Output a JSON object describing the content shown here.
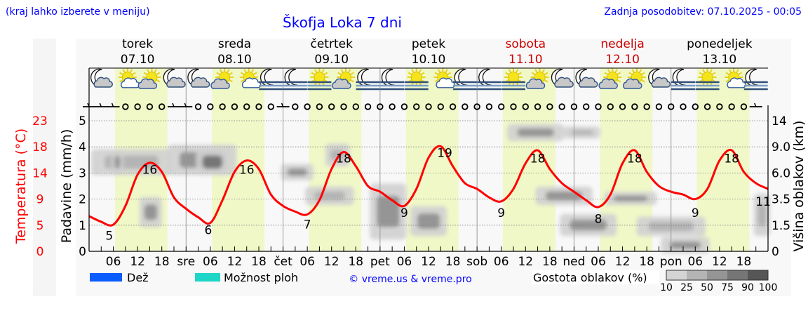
{
  "header": {
    "menu_hint": "(kraj lahko izberete v meniju)",
    "title": "Škofja Loka 7 dni",
    "updated": "Zadnja posodobitev: 07.10.2025 - 00:05",
    "copyright": "© vreme.us & vreme.pro"
  },
  "colors": {
    "link_blue": "#0000ff",
    "temperature": "#ff0000",
    "weekend": "#cc0000",
    "daylight": "#f0f8c8",
    "plot_bg": "#f8f8f8",
    "rain": "#0a5cff",
    "shower": "#1ed6c8"
  },
  "chart_data": {
    "type": "line",
    "title": "Škofja Loka 7 dni",
    "days": [
      {
        "name": "torek",
        "date": "07.10",
        "weekend": false
      },
      {
        "name": "sreda",
        "date": "08.10",
        "weekend": false
      },
      {
        "name": "četrtek",
        "date": "09.10",
        "weekend": false
      },
      {
        "name": "petek",
        "date": "10.10",
        "weekend": false
      },
      {
        "name": "sobota",
        "date": "11.10",
        "weekend": true
      },
      {
        "name": "nedelja",
        "date": "12.10",
        "weekend": true
      },
      {
        "name": "ponedeljek",
        "date": "13.10",
        "weekend": false
      }
    ],
    "x_day_abbr": [
      "",
      "sre",
      "čet",
      "pet",
      "sob",
      "ned",
      "pon"
    ],
    "x_hour_ticks": [
      "06",
      "12",
      "18"
    ],
    "left_axis": {
      "label": "Padavine (mm/h)",
      "ticks": [
        0,
        1,
        2,
        3,
        4,
        5
      ],
      "ylim": [
        0,
        5
      ]
    },
    "temp_axis": {
      "label": "Temperatura (°C)",
      "ticks": [
        "0",
        "5",
        "9",
        "14",
        "18",
        "23"
      ],
      "ylim": [
        0,
        23
      ]
    },
    "right_axis": {
      "label": "Višina oblakov (km)",
      "ticks": [
        "0",
        "1.5",
        "3.5",
        "6.0",
        "9.0",
        "14"
      ],
      "km": [
        0,
        1.5,
        3.5,
        6,
        9,
        14
      ]
    },
    "temperature_step_hours": 3,
    "temperature": [
      6.2,
      5.2,
      4.7,
      8.0,
      13.5,
      15.6,
      14.0,
      9.5,
      7.5,
      6.0,
      5.0,
      9.0,
      14.0,
      16.0,
      14.5,
      10.0,
      8.0,
      7.0,
      6.5,
      9.0,
      14.5,
      17.5,
      15.0,
      11.5,
      10.5,
      9.0,
      8.0,
      11.0,
      16.5,
      18.5,
      15.0,
      12.0,
      11.0,
      9.5,
      8.8,
      11.0,
      15.5,
      17.8,
      14.5,
      12.0,
      10.5,
      9.0,
      7.8,
      10.0,
      15.5,
      17.8,
      14.0,
      11.5,
      10.5,
      10.0,
      9.2,
      11.0,
      16.0,
      17.8,
      14.0,
      12.0,
      11.0
    ],
    "extremes": [
      {
        "hour": 5,
        "value": "5",
        "kind": "min"
      },
      {
        "hour": 15,
        "value": "16",
        "kind": "max"
      },
      {
        "hour": 29.5,
        "value": "6",
        "kind": "min"
      },
      {
        "hour": 39,
        "value": "16",
        "kind": "max"
      },
      {
        "hour": 54,
        "value": "7",
        "kind": "min"
      },
      {
        "hour": 63,
        "value": "18",
        "kind": "max"
      },
      {
        "hour": 78,
        "value": "9",
        "kind": "min"
      },
      {
        "hour": 88,
        "value": "19",
        "kind": "max"
      },
      {
        "hour": 102,
        "value": "9",
        "kind": "min"
      },
      {
        "hour": 111,
        "value": "18",
        "kind": "max"
      },
      {
        "hour": 126,
        "value": "8",
        "kind": "min"
      },
      {
        "hour": 135,
        "value": "18",
        "kind": "max"
      },
      {
        "hour": 150,
        "value": "9",
        "kind": "min"
      },
      {
        "hour": 159,
        "value": "18",
        "kind": "max"
      },
      {
        "hour": 167,
        "value": "11",
        "kind": "min"
      }
    ],
    "precipitation_mm_h": [],
    "weather_icons": [
      "moon-cloud",
      "sun-small-cloud",
      "sun-cloud",
      "moon-cloud",
      "moon-cloud",
      "sun-cloud",
      "sun-small-cloud",
      "moon-fog",
      "moon-fog",
      "sun-fog",
      "sun-cloud",
      "moon-fog",
      "moon-fog",
      "sun-fog",
      "sun-small-cloud",
      "moon-fog",
      "moon-fog",
      "sun-fog",
      "sun-cloud",
      "moon-cloud",
      "moon-cloud",
      "sun-cloud",
      "sun-cloud",
      "moon-cloud",
      "moon-fog",
      "sun-fog",
      "sun-small-cloud",
      "moon-fog"
    ],
    "wind": [
      "barb",
      "barb",
      "barb",
      "calm",
      "calm",
      "calm",
      "calm",
      "barb",
      "barb",
      "calm",
      "calm",
      "calm",
      "calm",
      "calm",
      "calm",
      "calm",
      "barb",
      "calm",
      "calm",
      "calm",
      "calm",
      "calm",
      "calm",
      "calm",
      "calm",
      "calm",
      "calm",
      "calm",
      "calm",
      "calm",
      "calm",
      "calm",
      "calm",
      "calm",
      "calm",
      "calm",
      "calm",
      "calm",
      "calm",
      "calm",
      "calm",
      "calm",
      "calm",
      "calm",
      "calm",
      "calm",
      "calm",
      "calm",
      "calm",
      "calm",
      "calm",
      "calm",
      "calm",
      "calm",
      "calm",
      "barb"
    ],
    "cloud_cells": [
      {
        "h0": 1,
        "h1": 20,
        "km0": 6.0,
        "km1": 8.5,
        "density": 40
      },
      {
        "h0": 6,
        "h1": 8,
        "km0": 6.0,
        "km1": 8.5,
        "density": 60
      },
      {
        "h0": 13,
        "h1": 17.5,
        "km0": 1.5,
        "km1": 3.5,
        "density": 50
      },
      {
        "h0": 20,
        "h1": 36,
        "km0": 6.0,
        "km1": 9.0,
        "density": 55
      },
      {
        "h0": 27,
        "h1": 34,
        "km0": 6.0,
        "km1": 8.5,
        "density": 75
      },
      {
        "h0": 48,
        "h1": 55,
        "km0": 5.5,
        "km1": 6.8,
        "density": 50
      },
      {
        "h0": 54,
        "h1": 65,
        "km0": 3.2,
        "km1": 4.5,
        "density": 45
      },
      {
        "h0": 59,
        "h1": 64,
        "km0": 7.0,
        "km1": 9.2,
        "density": 40
      },
      {
        "h0": 70,
        "h1": 78,
        "km0": 0.8,
        "km1": 4.8,
        "density": 60
      },
      {
        "h0": 80,
        "h1": 88,
        "km0": 1.0,
        "km1": 2.8,
        "density": 55
      },
      {
        "h0": 104,
        "h1": 117,
        "km0": 10.5,
        "km1": 13.0,
        "density": 70
      },
      {
        "h0": 118,
        "h1": 126,
        "km0": 11.0,
        "km1": 12.5,
        "density": 45
      },
      {
        "h0": 111,
        "h1": 124,
        "km0": 3.2,
        "km1": 4.5,
        "density": 60
      },
      {
        "h0": 117,
        "h1": 130,
        "km0": 1.0,
        "km1": 2.2,
        "density": 60
      },
      {
        "h0": 128,
        "h1": 140,
        "km0": 3.2,
        "km1": 4.0,
        "density": 50
      },
      {
        "h0": 136,
        "h1": 152,
        "km0": 1.0,
        "km1": 2.0,
        "density": 45
      },
      {
        "h0": 142,
        "h1": 153,
        "km0": 0.0,
        "km1": 0.7,
        "density": 70
      },
      {
        "h0": 165,
        "h1": 168,
        "km0": 1.0,
        "km1": 3.8,
        "density": 45
      }
    ]
  },
  "legend": {
    "rain_label": "Dež",
    "shower_label": "Možnost ploh",
    "density_title": "Gostota oblakov (%)",
    "density_ticks": [
      "10",
      "25",
      "50",
      "75",
      "90",
      "100"
    ],
    "density_colors": [
      "#d4d4d4",
      "#b4b4b4",
      "#959595",
      "#767676",
      "#565656"
    ]
  }
}
